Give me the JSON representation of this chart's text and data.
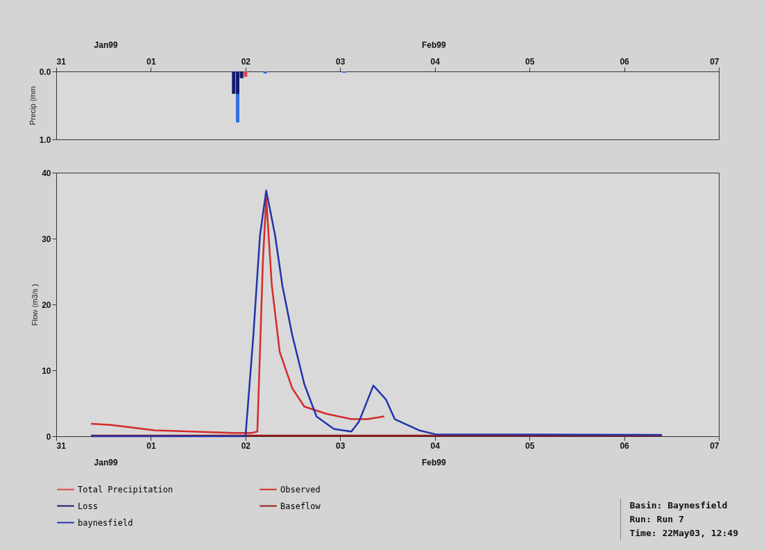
{
  "chart_data": [
    {
      "type": "bar",
      "ylabel": "Precip (mm",
      "legend": "bottom",
      "annotations": [
        "Jan99",
        "Feb99"
      ],
      "ylim": [
        1,
        0
      ],
      "yticks": [
        {
          "value": 0,
          "label": "0.0"
        },
        {
          "value": 1,
          "label": "1.0"
        }
      ],
      "xlim": [
        "--01-31T00:00",
        "--02-07T00:00"
      ],
      "xticks": [
        {
          "value": "--01-31T00:00",
          "label": "31"
        },
        {
          "value": "--02-01T00:00",
          "label": "01"
        },
        {
          "value": "--02-02T00:00",
          "label": "02"
        },
        {
          "value": "--02-03T00:00",
          "label": "03"
        },
        {
          "value": "--02-04T00:00",
          "label": "04"
        },
        {
          "value": "--02-05T00:00",
          "label": "05"
        },
        {
          "value": "--02-06T00:00",
          "label": "06"
        },
        {
          "value": "--02-07T00:00",
          "label": "07"
        }
      ],
      "series": [
        {
          "color": "#2f6fe0",
          "x": [
            "--02-01T22:00",
            "--02-02T05:00",
            "--02-03T01:00"
          ],
          "values": [
            0.75,
            0.03,
            0.02
          ]
        },
        {
          "name": "Total Precipitation",
          "color": "#e04848",
          "x": [
            "--02-02T00:00"
          ],
          "values": [
            0.08
          ]
        },
        {
          "name": "Loss",
          "color": "#151a6e",
          "x": [
            "--02-01T21:00",
            "--02-01T22:00",
            "--02-01T23:00"
          ],
          "values": [
            0.33,
            0.33,
            0.1
          ]
        }
      ]
    },
    {
      "type": "line",
      "ylabel": "Flow (m3/s )",
      "ylim": [
        0,
        40
      ],
      "yticks": [
        0,
        10,
        20,
        30,
        40
      ],
      "legend": "bottom",
      "xlim": [
        "--01-31T00:00",
        "--02-07T00:00"
      ],
      "xticks": [
        {
          "value": "--01-31T00:00",
          "label": "31"
        },
        {
          "value": "--02-01T00:00",
          "label": "01"
        },
        {
          "value": "--02-02T00:00",
          "label": "02"
        },
        {
          "value": "--02-03T00:00",
          "label": "03"
        },
        {
          "value": "--02-04T00:00",
          "label": "04"
        },
        {
          "value": "--02-05T00:00",
          "label": "05"
        },
        {
          "value": "--02-06T00:00",
          "label": "06"
        },
        {
          "value": "--02-07T00:00",
          "label": "07"
        }
      ],
      "annotations": [
        "Jan99",
        "Feb99",
        "Basin: Baynesfield",
        "Run: Run 7",
        "Time: 22May03, 12:49"
      ],
      "series": [
        {
          "name": "Observed",
          "color": "#d42a2a",
          "x": [
            "--01-31T09:00",
            "--01-31T14:00",
            "--02-01T01:00",
            "--02-01T21:00",
            "--02-02T01:30",
            "--02-02T03:00",
            "--02-02T04:25",
            "--02-02T05:15",
            "--02-02T06:40",
            "--02-02T08:40",
            "--02-02T11:50",
            "--02-02T14:55",
            "--02-02T20:35",
            "--02-03T02:50",
            "--02-03T07:00",
            "--02-03T11:00"
          ],
          "values": [
            1.9,
            1.7,
            0.9,
            0.5,
            0.5,
            0.7,
            26.7,
            36.1,
            22.9,
            12.8,
            7.3,
            4.5,
            3.4,
            2.6,
            2.6,
            3
          ]
        },
        {
          "name": "Baseflow",
          "color": "#9a1a1a",
          "x": [
            "--01-31T09:00",
            "--02-06T09:25"
          ],
          "values": [
            0.1,
            0.1
          ]
        },
        {
          "name": "baynesfield",
          "color": "#2233aa",
          "x": [
            "--01-31T09:00",
            "--02-02T00:00",
            "--02-02T02:00",
            "--02-02T03:40",
            "--02-02T05:15",
            "--02-02T07:30",
            "--02-02T09:20",
            "--02-02T11:50",
            "--02-02T14:55",
            "--02-02T18:00",
            "--02-02T22:25",
            "--02-03T02:50",
            "--02-03T04:45",
            "--02-03T08:25",
            "--02-03T11:35",
            "--02-03T13:50",
            "--02-03T20:00",
            "--02-04T00:10",
            "--02-06T09:25"
          ],
          "values": [
            0,
            0,
            15.4,
            30.5,
            37.3,
            30.5,
            22.9,
            15.4,
            7.9,
            3,
            1.1,
            0.7,
            2.2,
            7.7,
            5.6,
            2.6,
            0.9,
            0.3,
            0.2
          ]
        }
      ]
    }
  ]
}
